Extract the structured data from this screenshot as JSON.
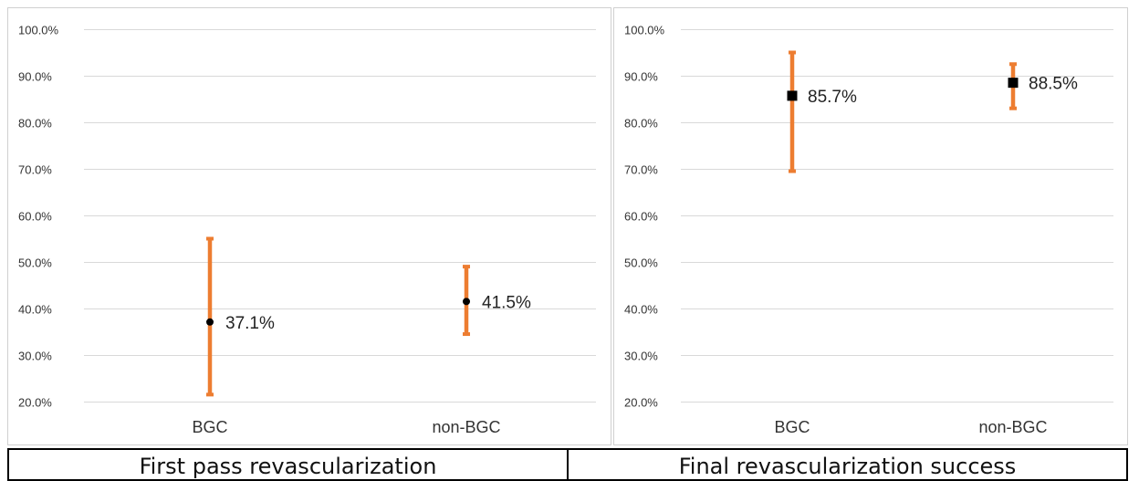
{
  "charts": [
    {
      "chart_data": {
        "type": "scatter",
        "categories": [
          "BGC",
          "non-BGC"
        ],
        "values": [
          37.1,
          41.5
        ],
        "error_low": [
          21.5,
          34.5
        ],
        "error_high": [
          55.0,
          49.0
        ],
        "data_labels": [
          "37.1%",
          "41.5%"
        ],
        "ylim": [
          20,
          100
        ],
        "yticks": [
          "20.0%",
          "30.0%",
          "40.0%",
          "50.0%",
          "60.0%",
          "70.0%",
          "80.0%",
          "90.0%",
          "100.0%"
        ],
        "grid": true,
        "marker": "circle",
        "colors": {
          "error_bar": "#ED7D31",
          "marker": "#000000",
          "grid": "#D9D9D9"
        }
      },
      "caption": "First pass revascularization"
    },
    {
      "chart_data": {
        "type": "scatter",
        "categories": [
          "BGC",
          "non-BGC"
        ],
        "values": [
          85.7,
          88.5
        ],
        "error_low": [
          69.5,
          83.0
        ],
        "error_high": [
          95.0,
          92.5
        ],
        "data_labels": [
          "85.7%",
          "88.5%"
        ],
        "ylim": [
          20,
          100
        ],
        "yticks": [
          "20.0%",
          "30.0%",
          "40.0%",
          "50.0%",
          "60.0%",
          "70.0%",
          "80.0%",
          "90.0%",
          "100.0%"
        ],
        "grid": true,
        "marker": "square",
        "colors": {
          "error_bar": "#ED7D31",
          "marker": "#000000",
          "grid": "#D9D9D9"
        }
      },
      "caption": "Final revascularization success"
    }
  ]
}
